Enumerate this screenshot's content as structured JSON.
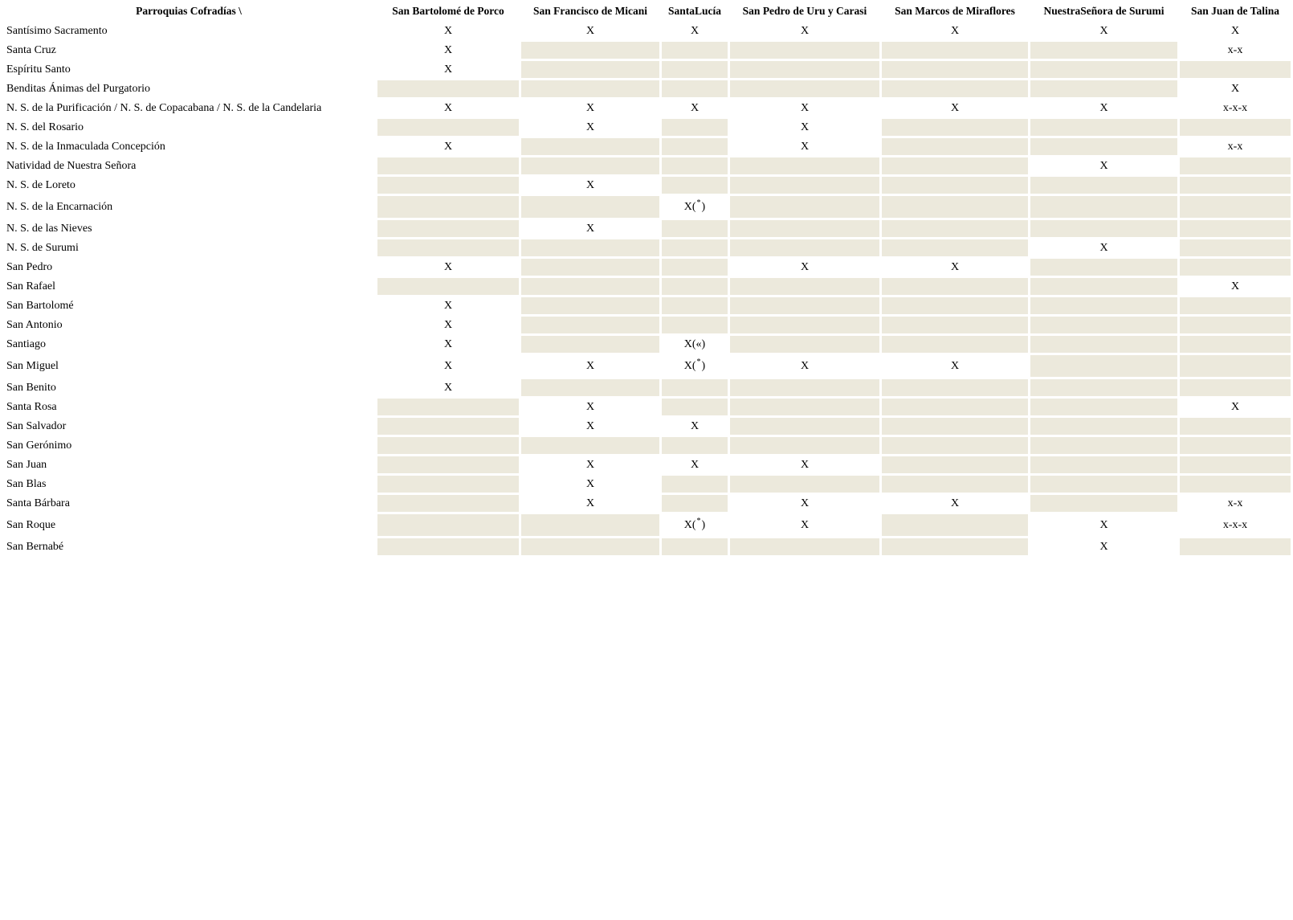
{
  "table": {
    "corner_header": "Parroquias Cofradías \\",
    "shaded_cell_color": "#ece9dc",
    "columns": [
      "San Bartolomé de Porco",
      "San Francisco de Micani",
      "SantaLucía",
      "San Pedro de Uru y Carasi",
      "San Marcos de Miraflores",
      "NuestraSeñora de Surumi",
      "San Juan de Talina"
    ],
    "rows": [
      {
        "label": "Santísimo Sacramento",
        "cells": [
          "X",
          "X",
          "X",
          "X",
          "X",
          "X",
          "X"
        ]
      },
      {
        "label": "Santa Cruz",
        "cells": [
          "X",
          "",
          "",
          "",
          "",
          "",
          "x-x"
        ]
      },
      {
        "label": "Espíritu Santo",
        "cells": [
          "X",
          "",
          "",
          "",
          "",
          "",
          ""
        ]
      },
      {
        "label": "Benditas Ánimas del Purgatorio",
        "cells": [
          "",
          "",
          "",
          "",
          "",
          "",
          "X"
        ]
      },
      {
        "label": "N. S. de la Purificación / N. S. de Copacabana / N. S. de la Candelaria",
        "cells": [
          "X",
          "X",
          "X",
          "X",
          "X",
          "X",
          "x-x-x"
        ]
      },
      {
        "label": "N. S. del Rosario",
        "cells": [
          "",
          "X",
          "",
          "X",
          "",
          "",
          ""
        ]
      },
      {
        "label": "N. S. de la Inmaculada Concepción",
        "cells": [
          "X",
          "",
          "",
          "X",
          "",
          "",
          "x-x"
        ]
      },
      {
        "label": "Natividad de Nuestra Señora",
        "cells": [
          "",
          "",
          "",
          "",
          "",
          "X",
          ""
        ]
      },
      {
        "label": "N. S. de Loreto",
        "cells": [
          "",
          "X",
          "",
          "",
          "",
          "",
          ""
        ]
      },
      {
        "label": "N. S. de la Encarnación",
        "cells": [
          "",
          "",
          "X(*)",
          "",
          "",
          "",
          ""
        ]
      },
      {
        "label": "N. S. de las Nieves",
        "cells": [
          "",
          "X",
          "",
          "",
          "",
          "",
          ""
        ]
      },
      {
        "label": "N. S. de Surumi",
        "cells": [
          "",
          "",
          "",
          "",
          "",
          "X",
          ""
        ]
      },
      {
        "label": "San Pedro",
        "cells": [
          "X",
          "",
          "",
          "X",
          "X",
          "",
          ""
        ]
      },
      {
        "label": "San Rafael",
        "cells": [
          "",
          "",
          "",
          "",
          "",
          "",
          "X"
        ]
      },
      {
        "label": "San Bartolomé",
        "cells": [
          "X",
          "",
          "",
          "",
          "",
          "",
          ""
        ]
      },
      {
        "label": "San Antonio",
        "cells": [
          "X",
          "",
          "",
          "",
          "",
          "",
          ""
        ]
      },
      {
        "label": "Santiago",
        "cells": [
          "X",
          "",
          "X(«)",
          "",
          "",
          "",
          ""
        ]
      },
      {
        "label": "San Miguel",
        "cells": [
          "X",
          "X",
          "X(*)",
          "X",
          "X",
          "",
          ""
        ]
      },
      {
        "label": "San Benito",
        "cells": [
          "X",
          "",
          "",
          "",
          "",
          "",
          ""
        ]
      },
      {
        "label": "Santa Rosa",
        "cells": [
          "",
          "X",
          "",
          "",
          "",
          "",
          "X"
        ]
      },
      {
        "label": "San Salvador",
        "cells": [
          "",
          "X",
          "X",
          "",
          "",
          "",
          ""
        ]
      },
      {
        "label": "San Gerónimo",
        "cells": [
          "",
          "",
          "",
          "",
          "",
          "",
          ""
        ]
      },
      {
        "label": "San Juan",
        "cells": [
          "",
          "X",
          "X",
          "X",
          "",
          "",
          ""
        ]
      },
      {
        "label": "San Blas",
        "cells": [
          "",
          "X",
          "",
          "",
          "",
          "",
          ""
        ]
      },
      {
        "label": "Santa Bárbara",
        "cells": [
          "",
          "X",
          "",
          "X",
          "X",
          "",
          "x-x"
        ]
      },
      {
        "label": "San Roque",
        "cells": [
          "",
          "",
          "X(*)",
          "X",
          "",
          "X",
          "x-x-x"
        ]
      },
      {
        "label": "San Bernabé",
        "cells": [
          "",
          "",
          "",
          "",
          "",
          "X",
          ""
        ]
      }
    ]
  }
}
